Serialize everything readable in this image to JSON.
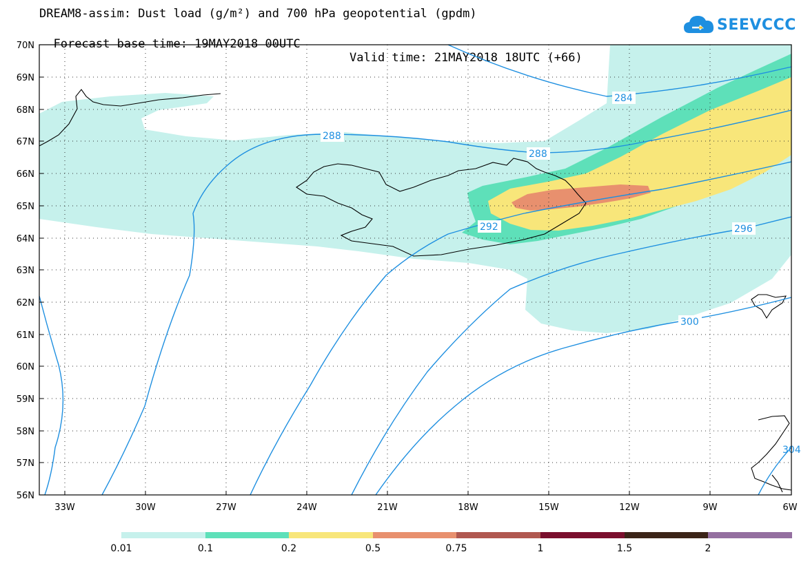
{
  "header": {
    "title_line1": "DREAM8-assim: Dust load (g/m²) and 700 hPa geopotential (gpdm)",
    "forecast_base": "Forecast base time: 19MAY2018 00UTC",
    "valid_time": "Valid time: 21MAY2018 18UTC (+66)"
  },
  "logo": {
    "text": "SEEVCCC",
    "icon": "cloud-logo-icon",
    "color": "#1e8fe0"
  },
  "map": {
    "lat_labels": [
      "70N",
      "69N",
      "68N",
      "67N",
      "66N",
      "65N",
      "64N",
      "63N",
      "62N",
      "61N",
      "60N",
      "59N",
      "58N",
      "57N",
      "56N"
    ],
    "lon_labels": [
      "33W",
      "30W",
      "27W",
      "24W",
      "21W",
      "18W",
      "15W",
      "12W",
      "9W",
      "6W"
    ],
    "contour_labels": [
      "284",
      "288",
      "288",
      "292",
      "296",
      "300",
      "304"
    ],
    "contour_color": "#1e8fe0"
  },
  "colorbar": {
    "colors": [
      "#c6f1ec",
      "#5ee0b9",
      "#f8e67a",
      "#e8906e",
      "#b05850",
      "#7a0f2d",
      "#3b2418",
      "#946fa0"
    ],
    "labels": [
      "0.01",
      "0.1",
      "0.2",
      "0.5",
      "0.75",
      "1",
      "1.5",
      "2"
    ]
  }
}
